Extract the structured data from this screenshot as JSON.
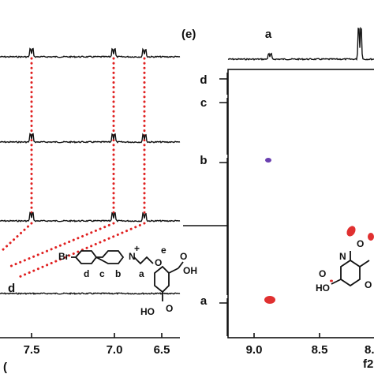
{
  "panel_label": "(e)",
  "left": {
    "corner_label": "(",
    "peak_label": "d",
    "ticks": [
      "7.5",
      "7.0",
      "6.5"
    ]
  },
  "structure": {
    "br": "Br",
    "n": "N",
    "charge": "+",
    "o_ether": "O",
    "o_acid1": "O",
    "oh_acid1": "OH",
    "oh_acid2": "HO",
    "o_acid2": "O",
    "d": "d",
    "c": "c",
    "b": "b",
    "a": "a",
    "e": "e"
  },
  "right": {
    "top_label": "a",
    "side_labels": [
      "d",
      "c",
      "b",
      "a"
    ],
    "ticks": [
      "9.0",
      "8.5",
      "8."
    ],
    "axis_label": "f2",
    "structure": {
      "n": "N",
      "o1": "O",
      "o2": "O",
      "ho": "HO",
      "o3": "O"
    }
  }
}
